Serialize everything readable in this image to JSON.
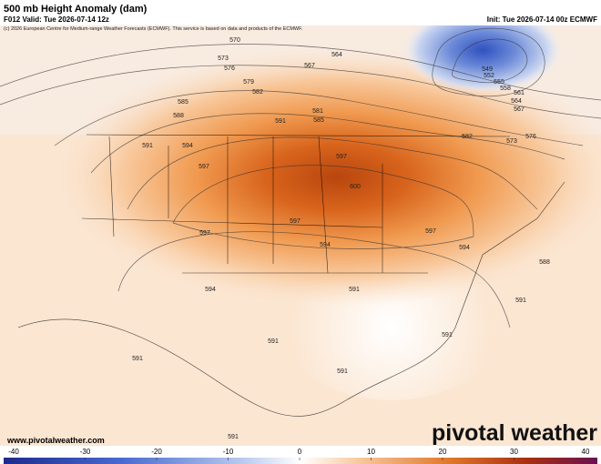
{
  "header": {
    "title": "500 mb Height Anomaly (dam)",
    "valid": "F012 Valid: Tue 2026-07-14 12z",
    "init": "Init: Tue 2026-07-14 00z ECMWF",
    "credit": "(c) 2026 European Centre for Medium-range Weather Forecasts (ECMWF). This service is based on data and products of the ECMWF."
  },
  "contour_labels": [
    "570",
    "573",
    "576",
    "564",
    "567",
    "579",
    "582",
    "585",
    "588",
    "591",
    "581",
    "585",
    "549",
    "552",
    "555",
    "558",
    "561",
    "564",
    "567",
    "582",
    "573",
    "576",
    "591",
    "594",
    "597",
    "597",
    "600",
    "597",
    "597",
    "594",
    "597",
    "594",
    "588",
    "594",
    "591",
    "591",
    "591",
    "591",
    "591",
    "591",
    "591"
  ],
  "footer": {
    "url": "www.pivotalweather.com",
    "logo": "pivotal weather"
  },
  "colorbar": {
    "ticks": [
      -40,
      -30,
      -20,
      -10,
      0,
      10,
      20,
      30,
      40
    ]
  }
}
